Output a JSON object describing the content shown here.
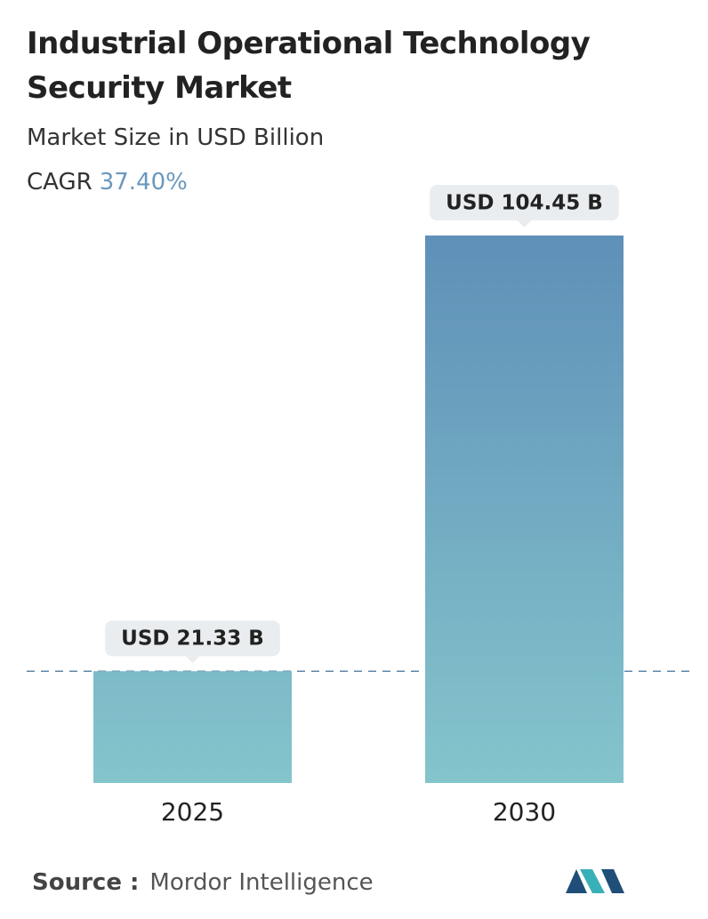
{
  "chart_data": {
    "type": "bar",
    "title": "Industrial Operational Technology Security Market",
    "subtitle": "Market Size in USD Billion",
    "cagr_label": "CAGR",
    "cagr": "37.40%",
    "categories": [
      "2025",
      "2030"
    ],
    "values": [
      21.33,
      104.45
    ],
    "value_labels": [
      "USD 21.33 B",
      "USD 104.45 B"
    ],
    "color": [
      "#5f90b8",
      "#84c5cc"
    ],
    "source_label": "Source :",
    "source": "Mordor Intelligence"
  }
}
